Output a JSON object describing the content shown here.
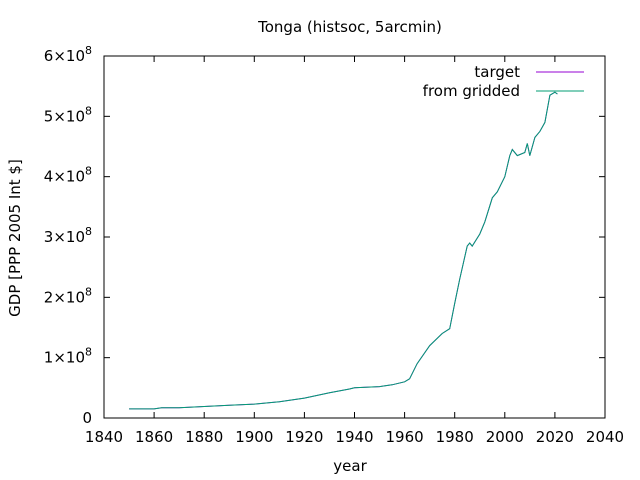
{
  "chart_data": {
    "type": "line",
    "title": "Tonga (histsoc, 5arcmin)",
    "xlabel": "year",
    "ylabel": "GDP [PPP 2005 Int $]",
    "xlim": [
      1840,
      2040
    ],
    "ylim": [
      0,
      600000000
    ],
    "x_ticks": [
      1840,
      1860,
      1880,
      1900,
      1920,
      1940,
      1960,
      1980,
      2000,
      2020,
      2040
    ],
    "y_ticks": [
      {
        "value": 0,
        "label": "0"
      },
      {
        "value": 100000000,
        "label": "1×10^8"
      },
      {
        "value": 200000000,
        "label": "2×10^8"
      },
      {
        "value": 300000000,
        "label": "3×10^8"
      },
      {
        "value": 400000000,
        "label": "4×10^8"
      },
      {
        "value": 500000000,
        "label": "5×10^8"
      },
      {
        "value": 600000000,
        "label": "6×10^8"
      }
    ],
    "legend_position": "top-right",
    "grid": false,
    "series": [
      {
        "name": "target",
        "color": "#9400d3",
        "x": [
          1850,
          1860,
          1863,
          1870,
          1880,
          1890,
          1900,
          1910,
          1920,
          1930,
          1938,
          1940,
          1950,
          1955,
          1960,
          1962,
          1965,
          1970,
          1975,
          1978,
          1980,
          1982,
          1985,
          1986,
          1987,
          1990,
          1992,
          1995,
          1997,
          2000,
          2002,
          2003,
          2005,
          2008,
          2009,
          2010,
          2012,
          2014,
          2016,
          2018,
          2020,
          2021
        ],
        "y": [
          15000000,
          15000000,
          17000000,
          17000000,
          19000000,
          21000000,
          23000000,
          27000000,
          33000000,
          42000000,
          48000000,
          50000000,
          52000000,
          55000000,
          60000000,
          65000000,
          90000000,
          120000000,
          140000000,
          148000000,
          190000000,
          230000000,
          285000000,
          290000000,
          285000000,
          305000000,
          325000000,
          365000000,
          375000000,
          400000000,
          435000000,
          445000000,
          435000000,
          440000000,
          455000000,
          435000000,
          465000000,
          475000000,
          490000000,
          535000000,
          540000000,
          537000000
        ]
      },
      {
        "name": "from gridded",
        "color": "#009e73",
        "x": [
          1850,
          1860,
          1863,
          1870,
          1880,
          1890,
          1900,
          1910,
          1920,
          1930,
          1938,
          1940,
          1950,
          1955,
          1960,
          1962,
          1965,
          1970,
          1975,
          1978,
          1980,
          1982,
          1985,
          1986,
          1987,
          1990,
          1992,
          1995,
          1997,
          2000,
          2002,
          2003,
          2005,
          2008,
          2009,
          2010,
          2012,
          2014,
          2016,
          2018,
          2020,
          2021
        ],
        "y": [
          15000000,
          15000000,
          17000000,
          17000000,
          19000000,
          21000000,
          23000000,
          27000000,
          33000000,
          42000000,
          48000000,
          50000000,
          52000000,
          55000000,
          60000000,
          65000000,
          90000000,
          120000000,
          140000000,
          148000000,
          190000000,
          230000000,
          285000000,
          290000000,
          285000000,
          305000000,
          325000000,
          365000000,
          375000000,
          400000000,
          435000000,
          445000000,
          435000000,
          440000000,
          455000000,
          435000000,
          465000000,
          475000000,
          490000000,
          535000000,
          540000000,
          537000000
        ]
      }
    ]
  }
}
